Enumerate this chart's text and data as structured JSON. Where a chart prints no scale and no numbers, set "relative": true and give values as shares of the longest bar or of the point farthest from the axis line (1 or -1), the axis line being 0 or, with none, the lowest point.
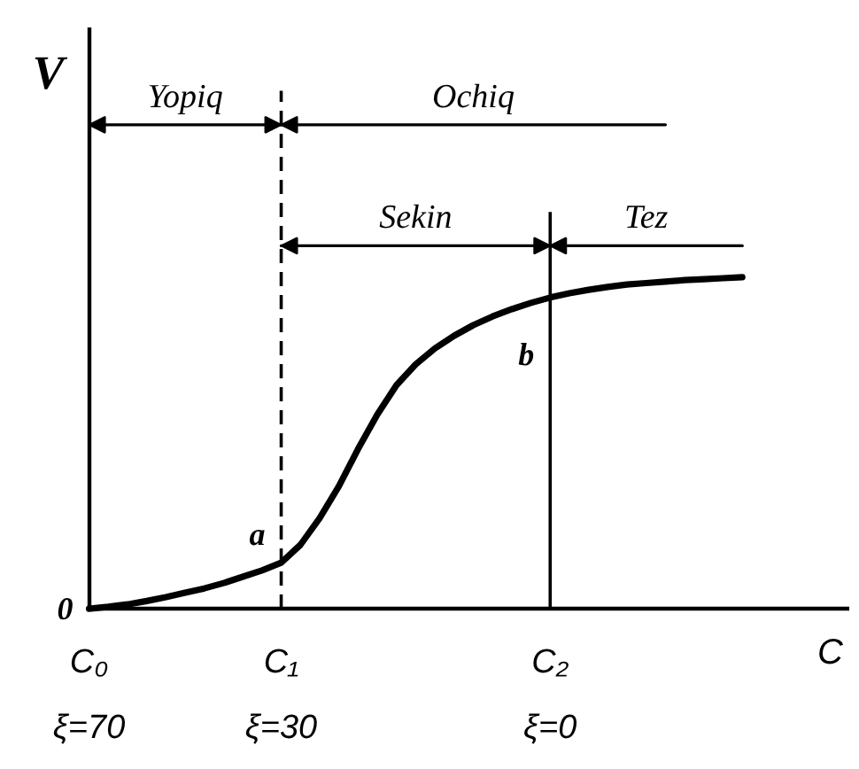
{
  "chart_data": {
    "type": "line",
    "relative": true,
    "xlabel": "C",
    "ylabel": "V",
    "categories": [
      "C₀\nξ=70",
      null,
      null,
      null,
      null,
      null,
      null,
      null,
      null,
      null,
      "C₁\nξ=30",
      null,
      null,
      null,
      null,
      null,
      null,
      null,
      null,
      null,
      null,
      null,
      null,
      null,
      "C₂\nξ=0",
      null,
      null,
      null,
      null,
      null,
      null,
      null,
      null,
      null,
      null
    ],
    "series": [
      {
        "color": "#000000",
        "values": [
          0,
          0.004,
          0.009,
          0.016,
          0.024,
          0.033,
          0.042,
          0.053,
          0.066,
          0.079,
          0.095,
          0.132,
          0.187,
          0.253,
          0.33,
          0.401,
          0.462,
          0.505,
          0.538,
          0.564,
          0.586,
          0.604,
          0.619,
          0.632,
          0.643,
          0.652,
          0.659,
          0.665,
          0.67,
          0.673,
          0.676,
          0.679,
          0.681,
          0.683,
          0.685
        ]
      },
      {
        "name": "Yopiq",
        "color": "#000000",
        "values": [
          1,
          1,
          1,
          1,
          1,
          1,
          1,
          1,
          1,
          1,
          1,
          null,
          null,
          null,
          null,
          null,
          null,
          null,
          null,
          null,
          null,
          null,
          null,
          null,
          null,
          null,
          null,
          null,
          null,
          null,
          null,
          null,
          null,
          null,
          null
        ]
      },
      {
        "name": "Ochiq",
        "color": "#000000",
        "values": [
          null,
          null,
          null,
          null,
          null,
          null,
          null,
          null,
          null,
          null,
          1,
          1,
          1,
          1,
          1,
          1,
          1,
          1,
          1,
          1,
          1,
          1,
          1,
          1,
          1,
          1,
          1,
          1,
          1,
          1,
          1,
          null,
          null,
          null,
          null
        ]
      },
      {
        "name": "Sekin",
        "color": "#000000",
        "values": [
          null,
          null,
          null,
          null,
          null,
          null,
          null,
          null,
          null,
          null,
          0.75,
          0.75,
          0.75,
          0.75,
          0.75,
          0.75,
          0.75,
          0.75,
          0.75,
          0.75,
          0.75,
          0.75,
          0.75,
          0.75,
          0.75,
          null,
          null,
          null,
          null,
          null,
          null,
          null,
          null,
          null,
          null
        ]
      },
      {
        "name": "Tez",
        "color": "#000000",
        "values": [
          null,
          null,
          null,
          null,
          null,
          null,
          null,
          null,
          null,
          null,
          null,
          null,
          null,
          null,
          null,
          null,
          null,
          null,
          null,
          null,
          null,
          null,
          null,
          null,
          0.75,
          0.75,
          0.75,
          0.75,
          0.75,
          0.75,
          0.75,
          0.75,
          0.75,
          0.75,
          0.75
        ]
      }
    ],
    "ref_lines": [
      {
        "axis": "x",
        "value": "C₁\nξ=30",
        "line_style": "dashed"
      },
      {
        "axis": "x",
        "value": "C₂\nξ=0",
        "line_style": "solid"
      }
    ],
    "annotations": [
      {
        "text": "0",
        "x": "C₀\nξ=70",
        "y": 0
      },
      {
        "text": "a",
        "x": "C₁\nξ=30",
        "y": 0.095
      },
      {
        "text": "b",
        "x": "C₂\nξ=0",
        "y": 0.643
      }
    ]
  }
}
